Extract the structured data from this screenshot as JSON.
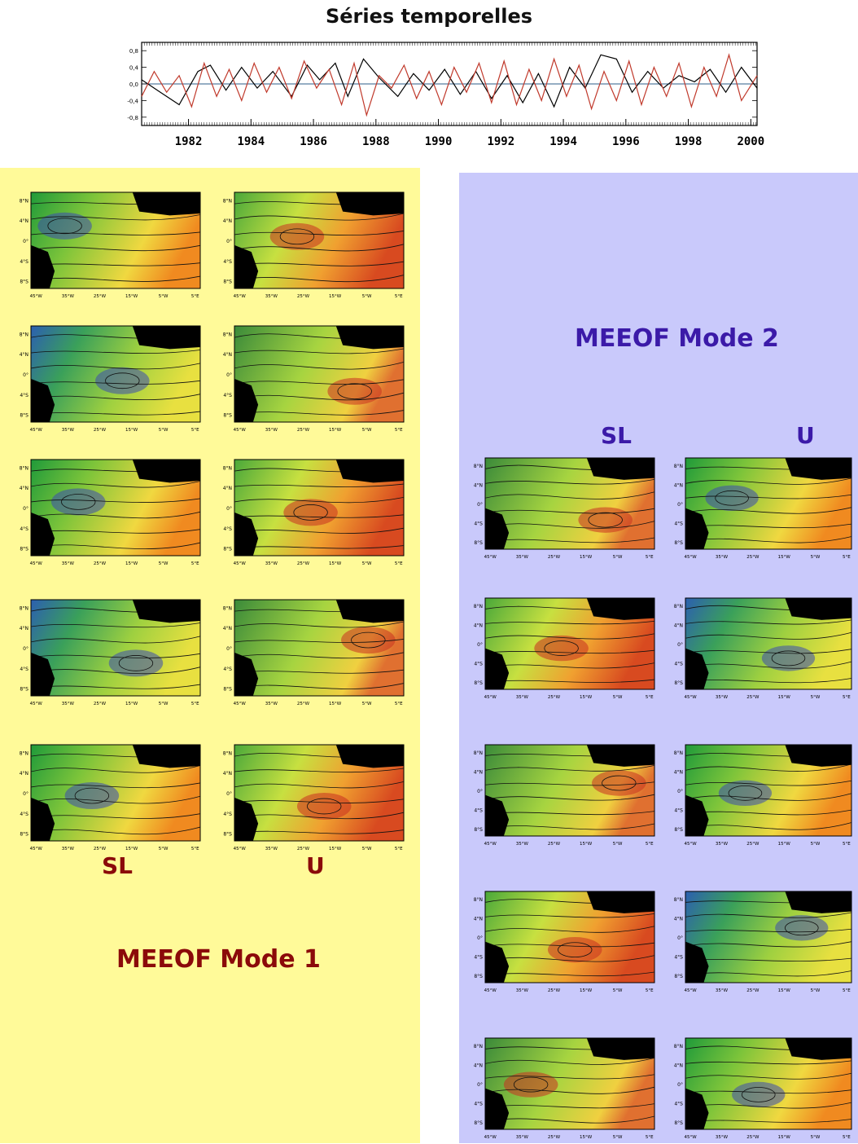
{
  "title": "Séries temporelles",
  "chart_data": {
    "type": "line",
    "title": "Séries temporelles",
    "xlim": [
      1981,
      2000.7
    ],
    "ylim": [
      -1.0,
      1.0
    ],
    "x_ticks": [
      "1982",
      "1984",
      "1986",
      "1988",
      "1990",
      "1992",
      "1994",
      "1996",
      "1998",
      "2000"
    ],
    "y_ticks": [
      "0,8",
      "0,4",
      "0,0",
      "-0,4",
      "-0,8"
    ],
    "series": [
      {
        "color": "#000000",
        "x": [
          1981,
          1981.6,
          1982.2,
          1982.8,
          1983.2,
          1983.7,
          1984.2,
          1984.7,
          1985.2,
          1985.8,
          1986.3,
          1986.7,
          1987.2,
          1987.6,
          1988.1,
          1988.6,
          1989.2,
          1989.7,
          1990.2,
          1990.7,
          1991.2,
          1991.7,
          1992.2,
          1992.7,
          1993.2,
          1993.7,
          1994.2,
          1994.7,
          1995.2,
          1995.7,
          1996.2,
          1996.7,
          1997.2,
          1997.7,
          1998.2,
          1998.7,
          1999.2,
          1999.7,
          2000.2,
          2000.7
        ],
        "y": [
          0.1,
          -0.2,
          -0.5,
          0.3,
          0.45,
          -0.15,
          0.4,
          -0.1,
          0.3,
          -0.3,
          0.45,
          0.1,
          0.5,
          -0.3,
          0.6,
          0.15,
          -0.3,
          0.25,
          -0.15,
          0.35,
          -0.25,
          0.3,
          -0.35,
          0.2,
          -0.45,
          0.25,
          -0.55,
          0.4,
          -0.1,
          0.7,
          0.6,
          -0.2,
          0.3,
          -0.1,
          0.2,
          0.05,
          0.35,
          -0.2,
          0.4,
          -0.1
        ]
      },
      {
        "color": "#c0392b",
        "x": [
          1981,
          1981.4,
          1981.8,
          1982.2,
          1982.6,
          1983,
          1983.4,
          1983.8,
          1984.2,
          1984.6,
          1985,
          1985.4,
          1985.8,
          1986.2,
          1986.6,
          1987,
          1987.4,
          1987.8,
          1988.2,
          1988.6,
          1989,
          1989.4,
          1989.8,
          1990.2,
          1990.6,
          1991,
          1991.4,
          1991.8,
          1992.2,
          1992.6,
          1993,
          1993.4,
          1993.8,
          1994.2,
          1994.6,
          1995,
          1995.4,
          1995.8,
          1996.2,
          1996.6,
          1997,
          1997.4,
          1997.8,
          1998.2,
          1998.6,
          1999,
          1999.4,
          1999.8,
          2000.2,
          2000.7
        ],
        "y": [
          -0.3,
          0.3,
          -0.2,
          0.2,
          -0.55,
          0.5,
          -0.3,
          0.35,
          -0.4,
          0.5,
          -0.2,
          0.4,
          -0.35,
          0.55,
          -0.1,
          0.35,
          -0.5,
          0.5,
          -0.75,
          0.2,
          -0.1,
          0.45,
          -0.35,
          0.3,
          -0.5,
          0.4,
          -0.2,
          0.5,
          -0.45,
          0.55,
          -0.5,
          0.35,
          -0.4,
          0.6,
          -0.3,
          0.45,
          -0.6,
          0.3,
          -0.4,
          0.55,
          -0.5,
          0.4,
          -0.3,
          0.5,
          -0.55,
          0.4,
          -0.3,
          0.7,
          -0.4,
          0.2
        ]
      }
    ]
  },
  "mode1": {
    "title": "MEEOF Mode 1",
    "label_sl": "SL",
    "label_u": "U",
    "lat_labels": [
      "8°N",
      "4°N",
      "0°",
      "4°S",
      "8°S"
    ],
    "lon_labels": [
      "45°W",
      "35°W",
      "25°W",
      "15°W",
      "5°W",
      "5°E"
    ]
  },
  "mode2": {
    "title": "MEEOF Mode 2",
    "label_sl": "SL",
    "label_u": "U",
    "lat_labels": [
      "8°N",
      "4°N",
      "0°",
      "4°S",
      "8°S"
    ],
    "lon_labels": [
      "45°W",
      "35°W",
      "25°W",
      "15°W",
      "5°W",
      "5°E"
    ]
  },
  "colors": {
    "mode1_text": "#8b0a0a",
    "mode2_text": "#3b1aa8",
    "panel_yellow": "#fffa99",
    "panel_blue": "#c9c9fb"
  }
}
